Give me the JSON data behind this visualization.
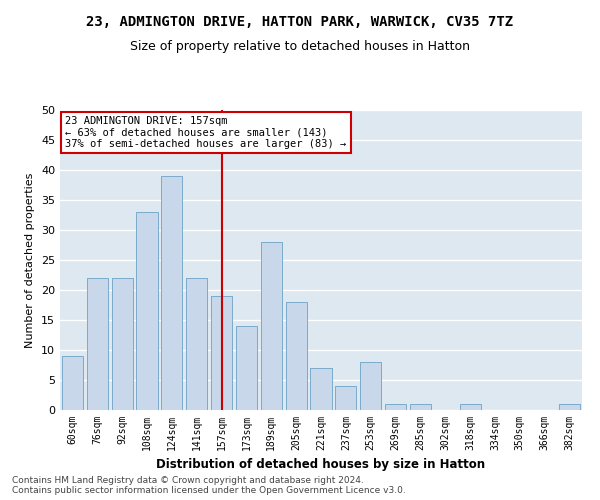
{
  "title_line1": "23, ADMINGTON DRIVE, HATTON PARK, WARWICK, CV35 7TZ",
  "title_line2": "Size of property relative to detached houses in Hatton",
  "xlabel": "Distribution of detached houses by size in Hatton",
  "ylabel": "Number of detached properties",
  "categories": [
    "60sqm",
    "76sqm",
    "92sqm",
    "108sqm",
    "124sqm",
    "141sqm",
    "157sqm",
    "173sqm",
    "189sqm",
    "205sqm",
    "221sqm",
    "237sqm",
    "253sqm",
    "269sqm",
    "285sqm",
    "302sqm",
    "318sqm",
    "334sqm",
    "350sqm",
    "366sqm",
    "382sqm"
  ],
  "values": [
    9,
    22,
    22,
    33,
    39,
    22,
    19,
    14,
    28,
    18,
    7,
    4,
    8,
    1,
    1,
    0,
    1,
    0,
    0,
    0,
    1
  ],
  "bar_color": "#c8d8ea",
  "bar_edgecolor": "#7aaaca",
  "vline_color": "#cc0000",
  "annotation_text": "23 ADMINGTON DRIVE: 157sqm\n← 63% of detached houses are smaller (143)\n37% of semi-detached houses are larger (83) →",
  "annotation_box_edgecolor": "#cc0000",
  "ylim": [
    0,
    50
  ],
  "yticks": [
    0,
    5,
    10,
    15,
    20,
    25,
    30,
    35,
    40,
    45,
    50
  ],
  "bg_color": "#dde8f0",
  "grid_color": "#ffffff",
  "footer_line1": "Contains HM Land Registry data © Crown copyright and database right 2024.",
  "footer_line2": "Contains public sector information licensed under the Open Government Licence v3.0."
}
